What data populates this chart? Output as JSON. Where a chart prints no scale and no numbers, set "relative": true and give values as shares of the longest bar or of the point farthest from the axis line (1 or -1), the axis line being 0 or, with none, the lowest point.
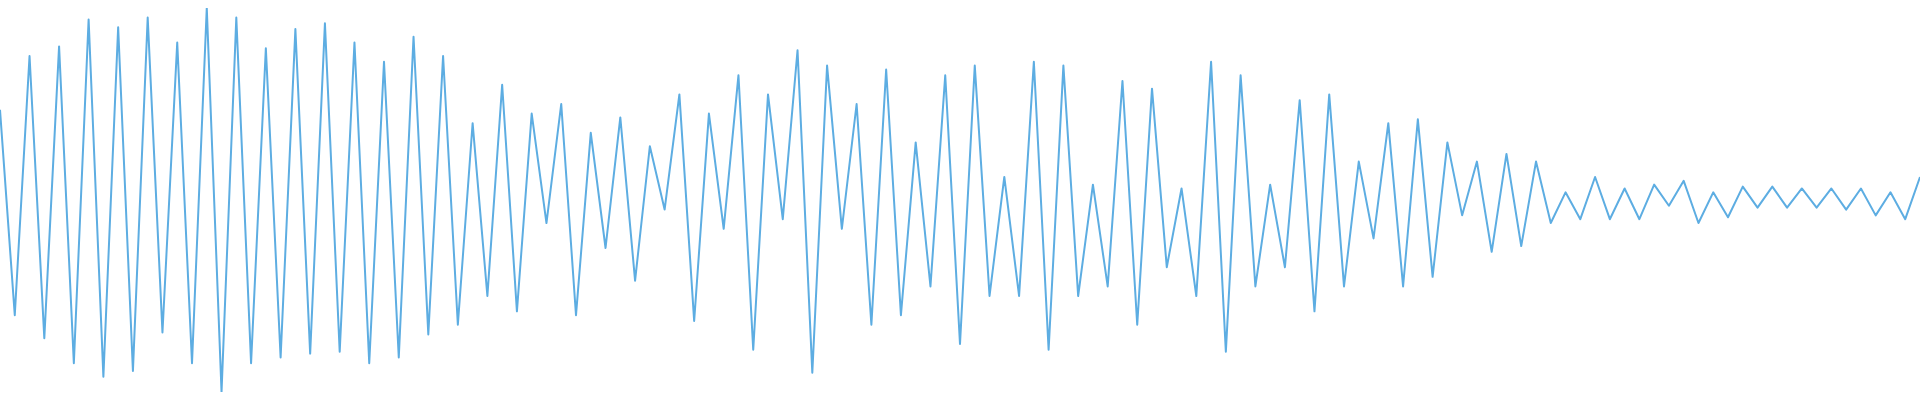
{
  "chart_data": {
    "type": "line",
    "relative": true,
    "marker": "none",
    "legend": false,
    "categories": [
      null,
      null,
      null,
      null,
      null,
      null,
      null,
      null,
      null,
      null,
      null,
      null,
      null,
      null,
      null,
      null,
      null,
      null,
      null,
      null,
      null,
      null,
      null,
      null,
      null,
      null,
      null,
      null,
      null,
      null,
      null,
      null,
      null,
      null,
      null,
      null,
      null,
      null,
      null,
      null,
      null,
      null,
      null,
      null,
      null,
      null,
      null,
      null,
      null,
      null,
      null,
      null,
      null,
      null,
      null,
      null,
      null,
      null,
      null,
      null,
      null,
      null,
      null,
      null,
      null,
      null,
      null,
      null,
      null,
      null,
      null,
      null,
      null,
      null,
      null,
      null,
      null,
      null,
      null,
      null,
      null,
      null,
      null,
      null,
      null,
      null,
      null,
      null,
      null,
      null,
      null,
      null,
      null,
      null,
      null,
      null,
      null,
      null,
      null,
      null,
      null,
      null,
      null,
      null,
      null,
      null,
      null,
      null,
      null,
      null,
      null,
      null,
      null,
      null,
      null,
      null,
      null,
      null,
      null,
      null,
      null,
      null,
      null,
      null,
      null,
      null,
      null,
      null,
      null,
      null,
      null
    ],
    "series": [
      {
        "color": "#5dade2",
        "values": [
          0.735,
          0.2,
          0.875,
          0.14,
          0.9,
          0.075,
          0.97,
          0.04,
          0.95,
          0.055,
          0.975,
          0.155,
          0.91,
          0.075,
          1,
          0,
          0.975,
          0.075,
          0.895,
          0.09,
          0.945,
          0.1,
          0.96,
          0.105,
          0.91,
          0.075,
          0.86,
          0.09,
          0.925,
          0.15,
          0.875,
          0.175,
          0.7,
          0.25,
          0.8,
          0.21,
          0.725,
          0.44,
          0.75,
          0.2,
          0.675,
          0.375,
          0.715,
          0.29,
          0.64,
          0.475,
          0.775,
          0.185,
          0.725,
          0.425,
          0.825,
          0.11,
          0.775,
          0.45,
          0.89,
          0.05,
          0.85,
          0.425,
          0.75,
          0.175,
          0.84,
          0.2,
          0.65,
          0.275,
          0.825,
          0.125,
          0.85,
          0.25,
          0.56,
          0.25,
          0.86,
          0.11,
          0.85,
          0.25,
          0.54,
          0.275,
          0.81,
          0.175,
          0.79,
          0.325,
          0.53,
          0.25,
          0.86,
          0.105,
          0.825,
          0.275,
          0.54,
          0.325,
          0.76,
          0.21,
          0.775,
          0.275,
          0.6,
          0.4,
          0.7,
          0.275,
          0.71,
          0.3,
          0.65,
          0.46,
          0.6,
          0.365,
          0.62,
          0.38,
          0.6,
          0.44,
          0.52,
          0.45,
          0.56,
          0.45,
          0.53,
          0.45,
          0.54,
          0.485,
          0.55,
          0.44,
          0.52,
          0.455,
          0.535,
          0.48,
          0.535,
          0.48,
          0.53,
          0.48,
          0.53,
          0.475,
          0.53,
          0.46,
          0.52,
          0.45,
          0.56
        ]
      }
    ]
  }
}
